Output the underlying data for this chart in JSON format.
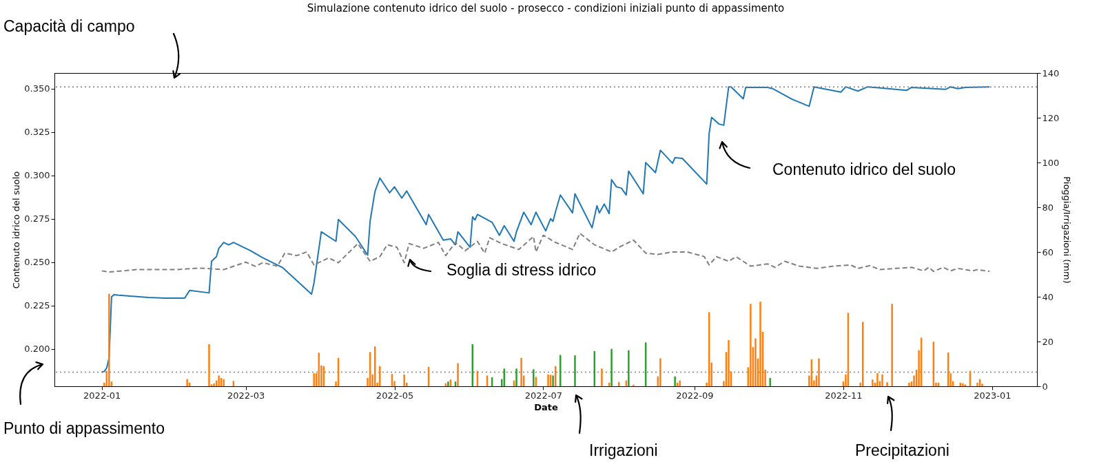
{
  "chart_data": {
    "type": "line",
    "title": "Simulazione contenuto idrico del suolo - prosecco - condizioni iniziali punto di appassimento",
    "xlabel": "Date",
    "ylabel": "Contenuto idrico del suolo",
    "y2label": "Pioggia/Irrigazioni (mm)",
    "xlim": [
      "2021-12-14",
      "2023-01-18"
    ],
    "xticks": [
      "2022-01",
      "2022-03",
      "2022-05",
      "2022-07",
      "2022-09",
      "2022-11",
      "2023-01"
    ],
    "ylim": [
      0.1785,
      0.359
    ],
    "yticks": [
      {
        "value": 0.2,
        "label": "0.200"
      },
      0.225,
      {
        "value": 0.25,
        "label": "0.250"
      },
      0.275,
      {
        "value": 0.3,
        "label": "0.300"
      },
      0.325,
      {
        "value": 0.35,
        "label": "0.350"
      }
    ],
    "y2lim": [
      0,
      140
    ],
    "y2ticks": [
      0,
      20,
      40,
      60,
      80,
      100,
      120,
      140
    ],
    "series": [
      {
        "color": "#1f77b4",
        "x": [
          "2022-01-01",
          "2022-01-02",
          "2022-01-03",
          "2022-01-04",
          "2022-01-05",
          "2022-01-06",
          "2022-01-08",
          "2022-01-20",
          "2022-01-27",
          "2022-02-04",
          "2022-02-06",
          "2022-02-14",
          "2022-02-15",
          "2022-02-17",
          "2022-02-18",
          "2022-02-20",
          "2022-02-22",
          "2022-02-24",
          "2022-03-03",
          "2022-03-08",
          "2022-03-16",
          "2022-03-28",
          "2022-03-29",
          "2022-04-01",
          "2022-04-07",
          "2022-04-08",
          "2022-04-15",
          "2022-04-20",
          "2022-04-21",
          "2022-04-23",
          "2022-04-25",
          "2022-04-29",
          "2022-05-01",
          "2022-05-04",
          "2022-05-06",
          "2022-05-14",
          "2022-05-15",
          "2022-05-21",
          "2022-05-24",
          "2022-05-26",
          "2022-05-27",
          "2022-06-01",
          "2022-06-02",
          "2022-06-03",
          "2022-06-04",
          "2022-06-10",
          "2022-06-13",
          "2022-06-15",
          "2022-06-19",
          "2022-06-20",
          "2022-06-23",
          "2022-06-26",
          "2022-06-28",
          "2022-07-02",
          "2022-07-04",
          "2022-07-05",
          "2022-07-06",
          "2022-07-08",
          "2022-07-13",
          "2022-07-14",
          "2022-07-21",
          "2022-07-23",
          "2022-07-24",
          "2022-07-26",
          "2022-07-28",
          "2022-07-29",
          "2022-07-31",
          "2022-08-02",
          "2022-08-04",
          "2022-08-05",
          "2022-08-11",
          "2022-08-12",
          "2022-08-16",
          "2022-08-18",
          "2022-08-23",
          "2022-08-24",
          "2022-08-27",
          "2022-09-06",
          "2022-09-07",
          "2022-09-08",
          "2022-09-11",
          "2022-09-13",
          "2022-09-15",
          "2022-09-16",
          "2022-09-21",
          "2022-09-22",
          "2022-10-01",
          "2022-10-03",
          "2022-10-11",
          "2022-10-18",
          "2022-10-20",
          "2022-10-31",
          "2022-11-02",
          "2022-11-07",
          "2022-11-11",
          "2022-11-27",
          "2022-11-29",
          "2022-12-13",
          "2022-12-15",
          "2022-12-18",
          "2022-12-21",
          "2022-12-31"
        ],
        "values": [
          0.1866,
          0.187,
          0.189,
          0.195,
          0.23,
          0.2313,
          0.231,
          0.2297,
          0.2293,
          0.2293,
          0.2337,
          0.2323,
          0.2505,
          0.2532,
          0.258,
          0.2614,
          0.26,
          0.2614,
          0.2566,
          0.2525,
          0.247,
          0.2316,
          0.238,
          0.2675,
          0.262,
          0.2746,
          0.2648,
          0.2541,
          0.2736,
          0.2907,
          0.2985,
          0.29,
          0.2934,
          0.2869,
          0.291,
          0.2716,
          0.2775,
          0.2627,
          0.2634,
          0.26,
          0.2675,
          0.2586,
          0.2761,
          0.2743,
          0.2775,
          0.273,
          0.2655,
          0.271,
          0.262,
          0.2675,
          0.2788,
          0.2716,
          0.2788,
          0.268,
          0.275,
          0.2735,
          0.279,
          0.2887,
          0.2784,
          0.2894,
          0.2698,
          0.2825,
          0.2784,
          0.2835,
          0.278,
          0.2975,
          0.2934,
          0.2927,
          0.2887,
          0.3025,
          0.2894,
          0.3074,
          0.3016,
          0.3145,
          0.307,
          0.3102,
          0.3098,
          0.295,
          0.3241,
          0.3334,
          0.3296,
          0.3289,
          0.351,
          0.351,
          0.3441,
          0.3507,
          0.3507,
          0.35,
          0.3439,
          0.3398,
          0.351,
          0.348,
          0.351,
          0.3486,
          0.351,
          0.349,
          0.3507,
          0.3496,
          0.351,
          0.35,
          0.3507,
          0.351
        ]
      },
      {
        "color": "#7f7f7f",
        "line_style": "dashed",
        "x": [
          "2022-01-01",
          "2022-01-04",
          "2022-01-15",
          "2022-02-01",
          "2022-02-10",
          "2022-02-20",
          "2022-03-01",
          "2022-03-05",
          "2022-03-08",
          "2022-03-14",
          "2022-03-17",
          "2022-03-22",
          "2022-03-26",
          "2022-03-29",
          "2022-04-04",
          "2022-04-08",
          "2022-04-16",
          "2022-04-21",
          "2022-04-25",
          "2022-04-28",
          "2022-05-02",
          "2022-05-05",
          "2022-05-07",
          "2022-05-13",
          "2022-05-19",
          "2022-05-22",
          "2022-05-26",
          "2022-05-30",
          "2022-06-04",
          "2022-06-07",
          "2022-06-09",
          "2022-06-14",
          "2022-06-21",
          "2022-06-27",
          "2022-06-28",
          "2022-07-01",
          "2022-07-06",
          "2022-07-13",
          "2022-07-16",
          "2022-07-22",
          "2022-07-29",
          "2022-08-02",
          "2022-08-07",
          "2022-08-12",
          "2022-08-17",
          "2022-08-23",
          "2022-08-29",
          "2022-09-05",
          "2022-09-07",
          "2022-09-10",
          "2022-09-15",
          "2022-09-18",
          "2022-09-24",
          "2022-10-01",
          "2022-10-04",
          "2022-10-08",
          "2022-10-14",
          "2022-10-21",
          "2022-10-28",
          "2022-11-04",
          "2022-11-07",
          "2022-11-12",
          "2022-11-16",
          "2022-11-22",
          "2022-11-29",
          "2022-12-04",
          "2022-12-06",
          "2022-12-08",
          "2022-12-12",
          "2022-12-15",
          "2022-12-18",
          "2022-12-24",
          "2022-12-26",
          "2022-12-31"
        ],
        "values": [
          0.245,
          0.2443,
          0.2457,
          0.2457,
          0.2466,
          0.2457,
          0.25,
          0.2476,
          0.2497,
          0.2477,
          0.2552,
          0.2538,
          0.2559,
          0.2484,
          0.2525,
          0.2497,
          0.2607,
          0.2505,
          0.2532,
          0.26,
          0.2586,
          0.2497,
          0.2607,
          0.258,
          0.2614,
          0.2538,
          0.2614,
          0.2566,
          0.262,
          0.2552,
          0.2641,
          0.2607,
          0.2573,
          0.2648,
          0.2559,
          0.2655,
          0.2614,
          0.2573,
          0.2666,
          0.26,
          0.2559,
          0.2593,
          0.2627,
          0.2552,
          0.2545,
          0.2559,
          0.2559,
          0.2532,
          0.2484,
          0.2532,
          0.2505,
          0.2532,
          0.2477,
          0.249,
          0.247,
          0.2505,
          0.2477,
          0.2464,
          0.2477,
          0.2484,
          0.2464,
          0.248,
          0.2457,
          0.2464,
          0.247,
          0.245,
          0.247,
          0.2447,
          0.247,
          0.245,
          0.2464,
          0.245,
          0.2457,
          0.2447
        ]
      },
      {
        "type": "bar",
        "axis": "y2",
        "color": "#ff7f0e",
        "x": [
          "2022-01-02",
          "2022-01-03",
          "2022-01-04",
          "2022-01-05",
          "2022-02-05",
          "2022-02-06",
          "2022-02-14",
          "2022-02-15",
          "2022-02-16",
          "2022-02-17",
          "2022-02-18",
          "2022-02-19",
          "2022-02-20",
          "2022-02-24",
          "2022-03-29",
          "2022-03-30",
          "2022-03-31",
          "2022-04-01",
          "2022-04-02",
          "2022-04-07",
          "2022-04-08",
          "2022-04-20",
          "2022-04-21",
          "2022-04-22",
          "2022-04-23",
          "2022-04-24",
          "2022-04-25",
          "2022-04-30",
          "2022-05-01",
          "2022-05-05",
          "2022-05-06",
          "2022-05-15",
          "2022-05-22",
          "2022-05-24",
          "2022-05-27",
          "2022-06-04",
          "2022-06-08",
          "2022-06-19",
          "2022-06-22",
          "2022-06-23",
          "2022-06-28",
          "2022-07-03",
          "2022-07-04",
          "2022-07-06",
          "2022-07-25",
          "2022-07-28",
          "2022-08-01",
          "2022-08-04",
          "2022-08-07",
          "2022-08-17",
          "2022-08-18",
          "2022-08-25",
          "2022-08-26",
          "2022-09-06",
          "2022-09-07",
          "2022-09-08",
          "2022-09-13",
          "2022-09-14",
          "2022-09-15",
          "2022-09-16",
          "2022-09-23",
          "2022-09-24",
          "2022-09-25",
          "2022-09-26",
          "2022-09-27",
          "2022-09-28",
          "2022-09-29",
          "2022-09-30",
          "2022-10-18",
          "2022-10-19",
          "2022-10-20",
          "2022-10-21",
          "2022-10-22",
          "2022-11-01",
          "2022-11-02",
          "2022-11-03",
          "2022-11-08",
          "2022-11-09",
          "2022-11-13",
          "2022-11-14",
          "2022-11-15",
          "2022-11-16",
          "2022-11-17",
          "2022-11-19",
          "2022-11-21",
          "2022-11-28",
          "2022-11-29",
          "2022-11-30",
          "2022-12-01",
          "2022-12-02",
          "2022-12-03",
          "2022-12-08",
          "2022-12-09",
          "2022-12-10",
          "2022-12-14",
          "2022-12-15",
          "2022-12-16",
          "2022-12-19",
          "2022-12-20",
          "2022-12-21",
          "2022-12-23",
          "2022-12-26",
          "2022-12-27",
          "2022-12-28"
        ],
        "values": [
          1.6,
          6.9,
          41.3,
          2.1,
          3.2,
          1.6,
          18.8,
          0.8,
          1.3,
          2.6,
          4.8,
          3.7,
          3.2,
          2.4,
          5.8,
          5.8,
          15.0,
          9.3,
          9.0,
          2.1,
          12.7,
          3.7,
          15.3,
          5.3,
          17.8,
          1.6,
          9.0,
          5.5,
          2.3,
          5.3,
          1.6,
          8.7,
          1.3,
          3.0,
          10.3,
          6.9,
          4.8,
          2.6,
          12.7,
          4.8,
          4.2,
          5.3,
          5.1,
          9.0,
          7.9,
          1.6,
          1.9,
          2.6,
          0.7,
          4.4,
          12.5,
          1.6,
          2.6,
          1.6,
          33.1,
          10.6,
          2.3,
          15.3,
          20.6,
          6.6,
          8.5,
          36.8,
          17.5,
          21.4,
          12.4,
          37.8,
          24.3,
          7.4,
          4.8,
          12.0,
          2.6,
          4.8,
          12.4,
          2.1,
          5.3,
          32.8,
          1.6,
          28.8,
          3.0,
          1.6,
          5.8,
          2.3,
          5.3,
          1.8,
          36.8,
          1.6,
          2.1,
          4.8,
          7.4,
          16.1,
          21.7,
          19.9,
          1.6,
          1.6,
          15.1,
          5.8,
          2.3,
          1.6,
          1.3,
          0.8,
          6.9,
          1.6,
          3.2,
          1.1
        ]
      },
      {
        "type": "bar",
        "axis": "y2",
        "color": "#2ca02c",
        "x": [
          "2022-05-23",
          "2022-05-26",
          "2022-06-02",
          "2022-06-10",
          "2022-06-14",
          "2022-06-15",
          "2022-06-20",
          "2022-06-27",
          "2022-07-05",
          "2022-07-08",
          "2022-07-14",
          "2022-07-22",
          "2022-07-29",
          "2022-08-05",
          "2022-08-12",
          "2022-08-24",
          "2022-10-02"
        ],
        "values": [
          2.1,
          2.1,
          18.8,
          4.0,
          3.2,
          7.9,
          7.9,
          7.6,
          4.8,
          14.0,
          13.8,
          15.7,
          16.7,
          16.1,
          19.6,
          4.4,
          3.7
        ]
      }
    ],
    "ref_lines": [
      {
        "axis": "y",
        "value": 0.351,
        "color": "#808080",
        "line_style": "dotted"
      },
      {
        "axis": "y",
        "value": 0.1866,
        "color": "#808080",
        "line_style": "dotted"
      }
    ],
    "annotations": [
      "Capacità di campo",
      "Punto di appassimento",
      "Contenuto idrico del suolo",
      "Soglia di stress idrico",
      "Irrigazioni",
      "Precipitazioni"
    ]
  }
}
